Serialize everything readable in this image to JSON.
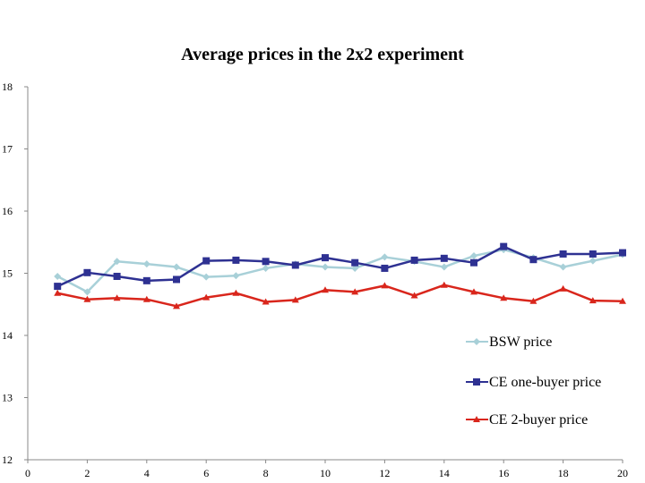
{
  "chart_data": {
    "type": "line",
    "title": "Average prices in the 2x2 experiment",
    "xlabel": "",
    "ylabel": "",
    "xlim": [
      0,
      20
    ],
    "ylim": [
      12,
      18
    ],
    "x_ticks": [
      0,
      2,
      4,
      6,
      8,
      10,
      12,
      14,
      16,
      18,
      20
    ],
    "y_ticks": [
      12,
      13,
      14,
      15,
      16,
      17,
      18
    ],
    "grid": false,
    "legend_position": "bottom-right",
    "x": [
      1,
      2,
      3,
      4,
      5,
      6,
      7,
      8,
      9,
      10,
      11,
      12,
      13,
      14,
      15,
      16,
      17,
      18,
      19,
      20
    ],
    "series": [
      {
        "name": "BSW price",
        "marker": "diamond",
        "color": "#a8d0d8",
        "values": [
          14.95,
          14.7,
          15.19,
          15.15,
          15.1,
          14.94,
          14.96,
          15.08,
          15.15,
          15.1,
          15.08,
          15.26,
          15.19,
          15.1,
          15.28,
          15.38,
          15.25,
          15.1,
          15.2,
          15.3
        ]
      },
      {
        "name": "CE one-buyer price",
        "marker": "square",
        "color": "#2e3192",
        "values": [
          14.79,
          15.01,
          14.95,
          14.88,
          14.9,
          15.2,
          15.21,
          15.19,
          15.13,
          15.25,
          15.17,
          15.08,
          15.21,
          15.24,
          15.17,
          15.43,
          15.22,
          15.31,
          15.31,
          15.33
        ]
      },
      {
        "name": "CE 2-buyer price",
        "marker": "triangle",
        "color": "#d9261c",
        "values": [
          14.68,
          14.58,
          14.6,
          14.58,
          14.47,
          14.61,
          14.68,
          14.54,
          14.57,
          14.73,
          14.7,
          14.8,
          14.64,
          14.81,
          14.7,
          14.6,
          14.55,
          14.75,
          14.56,
          14.55
        ]
      }
    ]
  }
}
